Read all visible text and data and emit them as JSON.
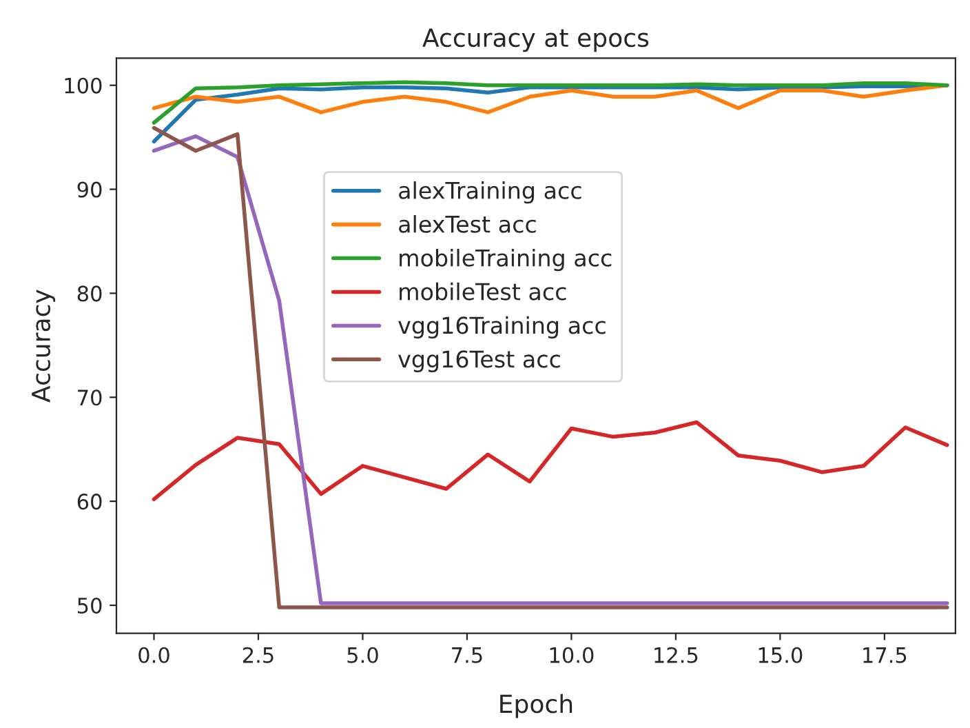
{
  "chart_data": {
    "type": "line",
    "title": "Accuracy at epocs",
    "xlabel": "Epoch",
    "ylabel": "Accuracy",
    "x": [
      0,
      1,
      2,
      3,
      4,
      5,
      6,
      7,
      8,
      9,
      10,
      11,
      12,
      13,
      14,
      15,
      16,
      17,
      18,
      19
    ],
    "series": [
      {
        "name": "alexTraining acc",
        "color": "#1f77b4",
        "values": [
          94.6,
          98.6,
          99.1,
          99.7,
          99.6,
          99.8,
          99.8,
          99.7,
          99.3,
          99.8,
          99.8,
          99.8,
          99.8,
          99.8,
          99.6,
          99.8,
          99.8,
          99.9,
          99.9,
          100
        ]
      },
      {
        "name": "alexTest acc",
        "color": "#ff7f0e",
        "values": [
          97.8,
          98.9,
          98.4,
          98.9,
          97.4,
          98.4,
          98.9,
          98.4,
          97.4,
          98.9,
          99.5,
          98.9,
          98.9,
          99.5,
          97.8,
          99.5,
          99.5,
          98.9,
          99.5,
          100
        ]
      },
      {
        "name": "mobileTraining acc",
        "color": "#2ca02c",
        "values": [
          96.4,
          99.7,
          99.8,
          100,
          100.1,
          100.2,
          100.3,
          100.2,
          100,
          100,
          100,
          100,
          100,
          100.1,
          100,
          100,
          100,
          100.2,
          100.2,
          100
        ]
      },
      {
        "name": "mobileTest acc",
        "color": "#d62728",
        "values": [
          60.2,
          63.5,
          66.1,
          65.5,
          60.7,
          63.4,
          62.3,
          61.2,
          64.5,
          61.9,
          67.0,
          66.2,
          66.6,
          67.6,
          64.4,
          63.9,
          62.8,
          63.4,
          67.1,
          65.4
        ]
      },
      {
        "name": "vgg16Training acc",
        "color": "#9467bd",
        "values": [
          93.7,
          95.1,
          93.1,
          79.3,
          50.2,
          50.2,
          50.2,
          50.2,
          50.2,
          50.2,
          50.2,
          50.2,
          50.2,
          50.2,
          50.2,
          50.2,
          50.2,
          50.2,
          50.2,
          50.2
        ]
      },
      {
        "name": "vgg16Test acc",
        "color": "#8c564b",
        "values": [
          95.9,
          93.7,
          95.3,
          49.8,
          49.8,
          49.8,
          49.8,
          49.8,
          49.8,
          49.8,
          49.8,
          49.8,
          49.8,
          49.8,
          49.8,
          49.8,
          49.8,
          49.8,
          49.8,
          49.8
        ]
      }
    ],
    "xlim": [
      -0.9,
      19.2
    ],
    "ylim": [
      47.3,
      102.6
    ],
    "xticks": [
      {
        "value": 0,
        "label": "0.0"
      },
      {
        "value": 2.5,
        "label": "2.5"
      },
      {
        "value": 5,
        "label": "5.0"
      },
      {
        "value": 7.5,
        "label": "7.5"
      },
      {
        "value": 10,
        "label": "10.0"
      },
      {
        "value": 12.5,
        "label": "12.5"
      },
      {
        "value": 15,
        "label": "15.0"
      },
      {
        "value": 17.5,
        "label": "17.5"
      }
    ],
    "yticks": [
      50,
      60,
      70,
      80,
      90,
      100
    ],
    "legend": "center",
    "grid": false,
    "marker": "none",
    "line_style": "solid"
  }
}
